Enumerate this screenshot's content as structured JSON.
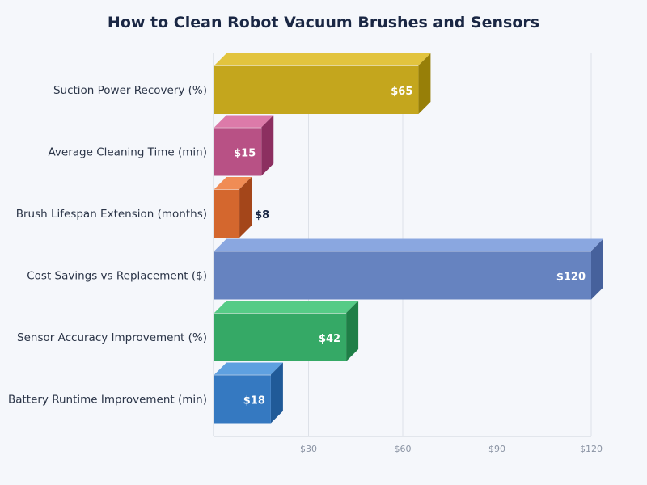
{
  "chart_data": {
    "type": "bar",
    "orientation": "horizontal",
    "style": "3d",
    "title": "How to Clean Robot Vacuum Brushes and Sensors",
    "xlabel": "",
    "ylabel": "",
    "xlim": [
      0,
      120
    ],
    "x_ticks": [
      30,
      60,
      90,
      120
    ],
    "x_tick_labels": [
      "$30",
      "$60",
      "$90",
      "$120"
    ],
    "grid": true,
    "categories": [
      "Suction Power Recovery (%)",
      "Average Cleaning Time (min)",
      "Brush Lifespan Extension (months)",
      "Cost Savings vs Replacement ($)",
      "Sensor Accuracy Improvement (%)",
      "Battery Runtime Improvement (min)"
    ],
    "values": [
      65,
      15,
      8,
      120,
      42,
      18
    ],
    "data_labels": [
      "$65",
      "$15",
      "$8",
      "$120",
      "$42",
      "$18"
    ],
    "colors": [
      {
        "front": "#c4a61d",
        "top": "#e2c43e",
        "side": "#977f08"
      },
      {
        "front": "#b85185",
        "top": "#dc7aa9",
        "side": "#8c2f60"
      },
      {
        "front": "#d4672e",
        "top": "#f08c55",
        "side": "#a4461a"
      },
      {
        "front": "#6683c0",
        "top": "#8aa7e0",
        "side": "#46619c"
      },
      {
        "front": "#35a966",
        "top": "#55cb86",
        "side": "#1f7f47"
      },
      {
        "front": "#3579c1",
        "top": "#5ea0e0",
        "side": "#205a98"
      }
    ]
  }
}
